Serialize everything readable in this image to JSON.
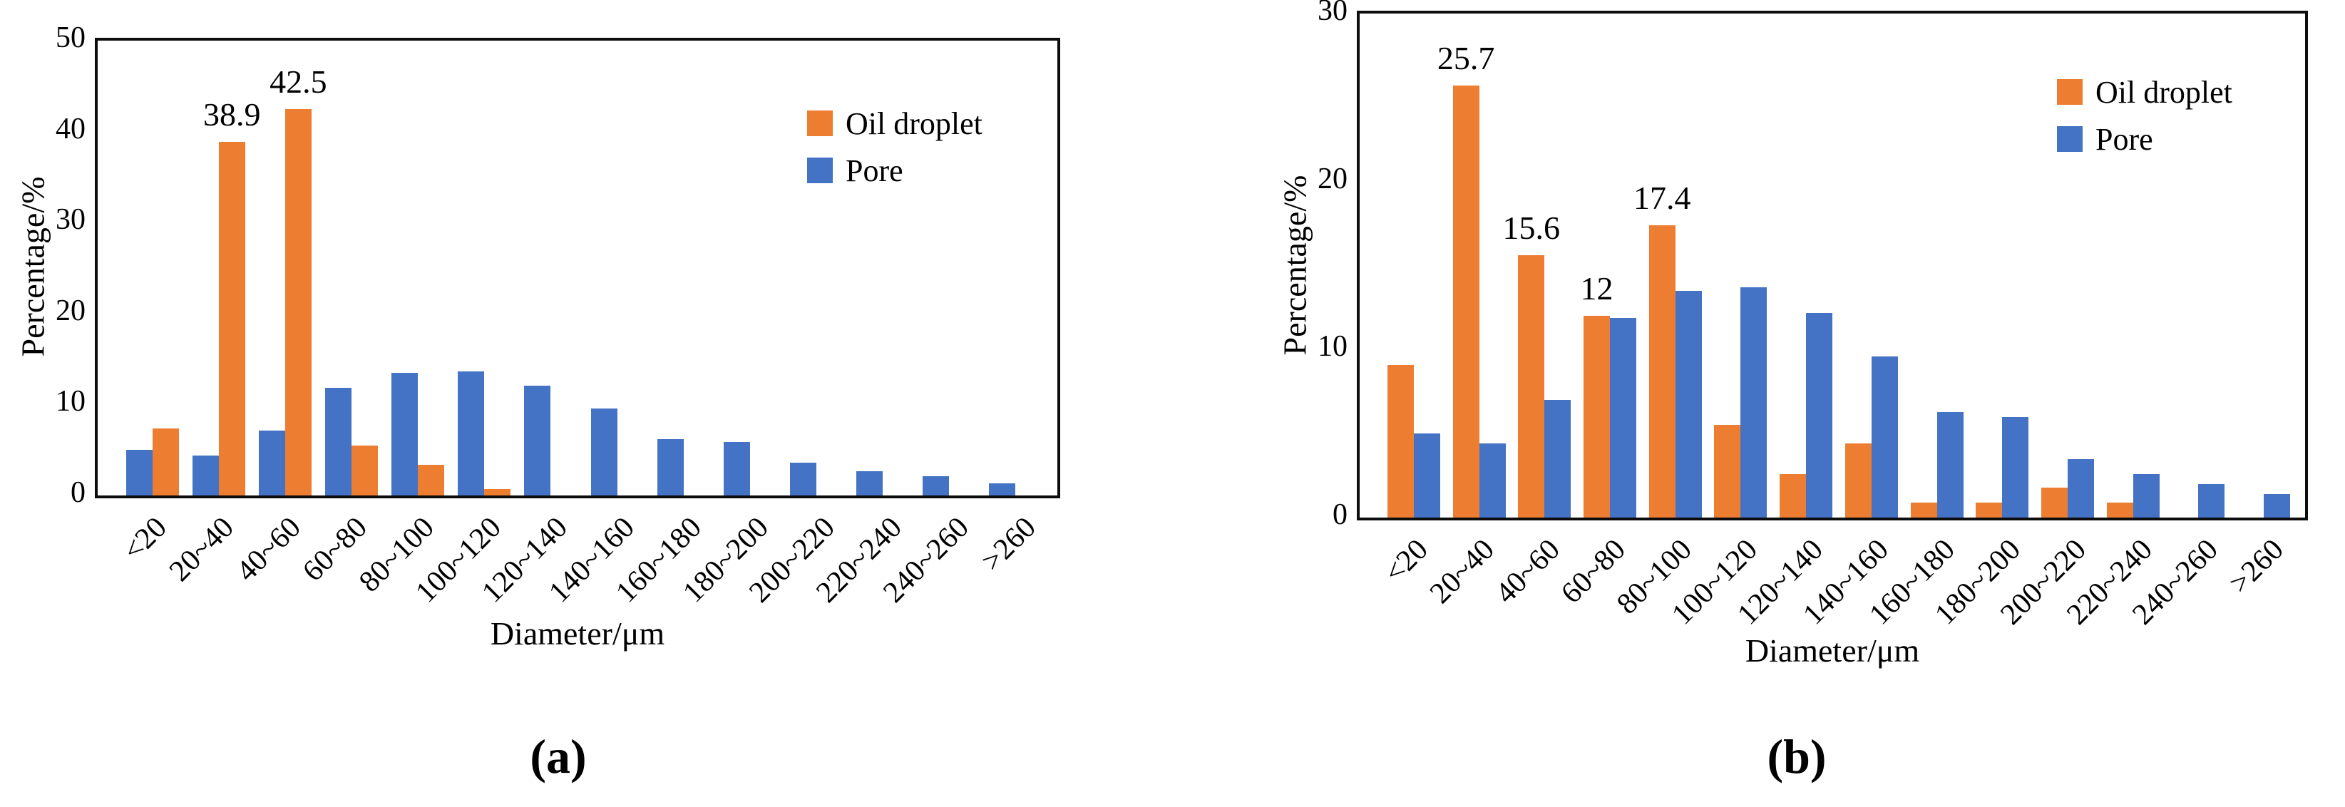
{
  "figure": {
    "background": "#ffffff"
  },
  "colors": {
    "oil_droplet": "#ED7D31",
    "pore": "#4472C4",
    "axis": "#0d0d0d"
  },
  "chart_data": [
    {
      "type": "bar",
      "panel": "a",
      "caption": "(a)",
      "ylabel": "Percentage/%",
      "xlabel": "Diameter/μm",
      "ylim": [
        0,
        50
      ],
      "yticks": [
        0,
        10,
        20,
        30,
        40,
        50
      ],
      "grid": false,
      "legend_position": "top-right-inside",
      "categories": [
        "<20",
        "20~40",
        "40~60",
        "60~80",
        "80~100",
        "100~120",
        "120~140",
        "140~160",
        "160~180",
        "180~200",
        "200~220",
        "220~240",
        "240~260",
        ">260"
      ],
      "legend": [
        {
          "label": "Oil droplet",
          "color": "#ED7D31"
        },
        {
          "label": "Pore",
          "color": "#4472C4"
        }
      ],
      "series": [
        {
          "name": "Pore",
          "color": "#4472C4",
          "values": [
            5.0,
            4.4,
            7.1,
            11.8,
            13.5,
            13.6,
            12.1,
            9.6,
            6.2,
            5.9,
            3.6,
            2.7,
            2.1,
            1.3
          ],
          "value_labels": [
            "",
            "",
            "",
            "",
            "",
            "",
            "",
            "",
            "",
            "",
            "",
            "",
            "",
            ""
          ]
        },
        {
          "name": "Oil droplet",
          "color": "#ED7D31",
          "values": [
            7.4,
            38.9,
            42.5,
            5.5,
            3.4,
            0.7,
            0,
            0,
            0,
            0,
            0,
            0,
            0,
            0
          ],
          "value_labels": [
            "",
            "38.9",
            "42.5",
            "",
            "",
            "",
            "",
            "",
            "",
            "",
            "",
            "",
            "",
            ""
          ]
        }
      ]
    },
    {
      "type": "bar",
      "panel": "b",
      "caption": "(b)",
      "ylabel": "Percentage/%",
      "xlabel": "Diameter/μm",
      "ylim": [
        0,
        30
      ],
      "yticks": [
        0,
        10,
        20,
        30
      ],
      "grid": false,
      "legend_position": "top-right-inside",
      "categories": [
        "<20",
        "20~40",
        "40~60",
        "60~80",
        "80~100",
        "100~120",
        "120~140",
        "140~160",
        "160~180",
        "180~200",
        "200~220",
        "220~240",
        "240~260",
        ">260"
      ],
      "legend": [
        {
          "label": "Oil droplet",
          "color": "#ED7D31"
        },
        {
          "label": "Pore",
          "color": "#4472C4"
        }
      ],
      "series": [
        {
          "name": "Oil droplet",
          "color": "#ED7D31",
          "values": [
            9.1,
            25.7,
            15.6,
            12,
            17.4,
            5.5,
            2.6,
            4.4,
            0.9,
            0.9,
            1.8,
            0.9,
            0,
            0
          ],
          "value_labels": [
            "",
            "25.7",
            "15.6",
            "12",
            "17.4",
            "",
            "",
            "",
            "",
            "",
            "",
            "",
            "",
            ""
          ]
        },
        {
          "name": "Pore",
          "color": "#4472C4",
          "values": [
            5.0,
            4.4,
            7.0,
            11.9,
            13.5,
            13.7,
            12.2,
            9.6,
            6.3,
            6.0,
            3.5,
            2.6,
            2.0,
            1.4
          ],
          "value_labels": [
            "",
            "",
            "",
            "",
            "",
            "",
            "",
            "",
            "",
            "",
            "",
            "",
            "",
            ""
          ]
        }
      ]
    }
  ]
}
